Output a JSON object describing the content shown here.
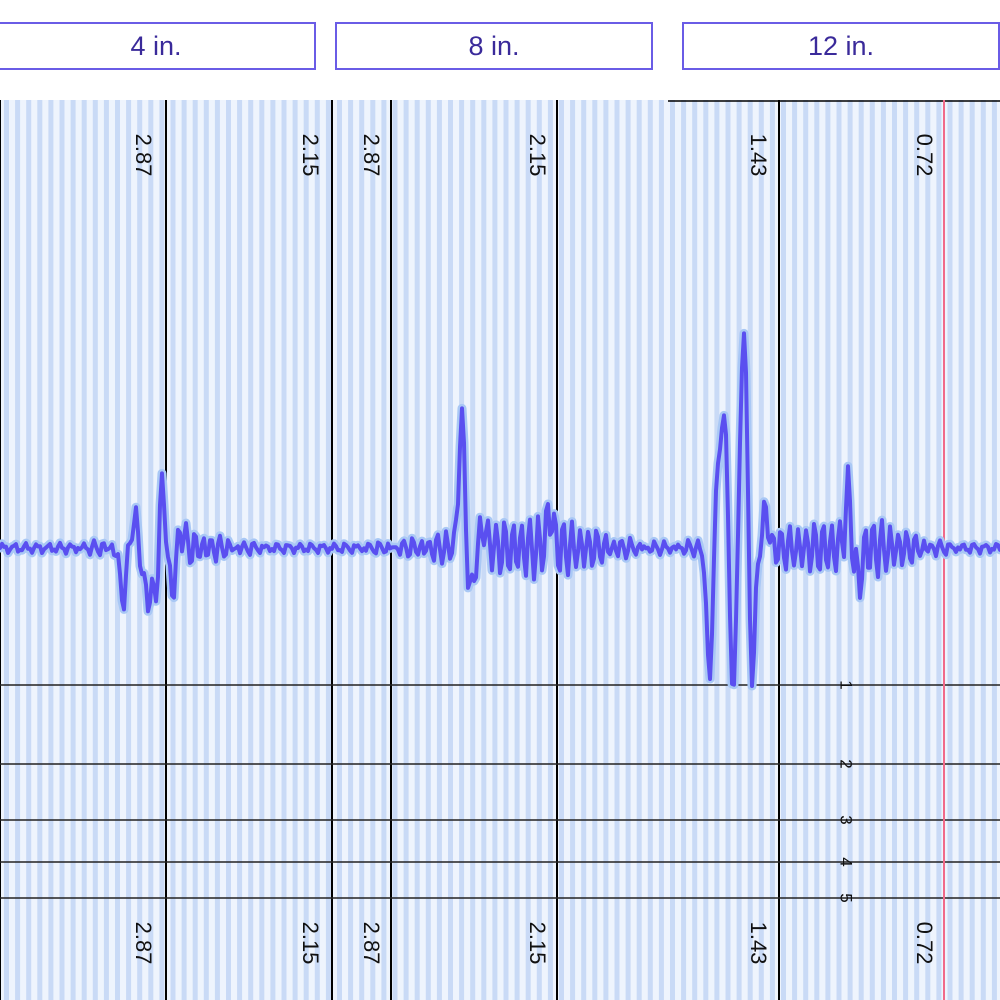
{
  "tabs": [
    {
      "label": "4 in."
    },
    {
      "label": "8 in."
    },
    {
      "label": "12 in."
    }
  ],
  "colors": {
    "trace": "#5a4ff0",
    "trace_glow": "#a9c8f5",
    "stripe": "#c9daf6",
    "background": "#eef4fd",
    "grid_major": "#000000",
    "marker": "#f06a8a",
    "tab_border": "#6a5ce6",
    "tab_text": "#3a2a9a"
  },
  "chart_data": {
    "type": "line",
    "title": "",
    "xlabel": "",
    "ylabel": "",
    "panels": [
      {
        "name": "4 in.",
        "ticks": [
          "2.87",
          "2.15"
        ]
      },
      {
        "name": "8 in.",
        "ticks": [
          "2.87",
          "2.15"
        ]
      },
      {
        "name": "12 in.",
        "ticks": [
          "1.43",
          "0.72"
        ]
      }
    ],
    "depth_ticks": [
      "1",
      "2",
      "3",
      "4",
      "5"
    ],
    "waveform_peaks": [
      {
        "x": 0.123,
        "y": -0.5
      },
      {
        "x": 0.135,
        "y": 0.32
      },
      {
        "x": 0.143,
        "y": -0.25
      },
      {
        "x": 0.149,
        "y": -0.4
      },
      {
        "x": 0.156,
        "y": -0.48
      },
      {
        "x": 0.162,
        "y": 0.65
      },
      {
        "x": 0.172,
        "y": -0.45
      },
      {
        "x": 0.181,
        "y": 0.18
      },
      {
        "x": 0.462,
        "y": 1.28
      },
      {
        "x": 0.47,
        "y": -0.55
      },
      {
        "x": 0.484,
        "y": 0.2
      },
      {
        "x": 0.55,
        "y": 0.35
      },
      {
        "x": 0.71,
        "y": -1.3
      },
      {
        "x": 0.718,
        "y": 0.95
      },
      {
        "x": 0.726,
        "y": 1.45
      },
      {
        "x": 0.732,
        "y": -1.7
      },
      {
        "x": 0.744,
        "y": 2.3
      },
      {
        "x": 0.752,
        "y": -1.3
      },
      {
        "x": 0.765,
        "y": 0.35
      },
      {
        "x": 0.848,
        "y": 0.5
      },
      {
        "x": 0.858,
        "y": -0.35
      }
    ]
  }
}
